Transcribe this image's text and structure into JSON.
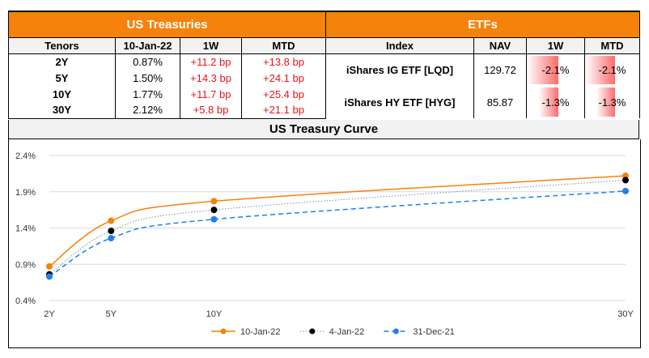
{
  "treasuries": {
    "title": "US Treasuries",
    "headers": [
      "Tenors",
      "10-Jan-22",
      "1W",
      "MTD"
    ],
    "rows": [
      {
        "tenor": "2Y",
        "yield": "0.87%",
        "w1": "+11.2 bp",
        "mtd": "+13.8 bp"
      },
      {
        "tenor": "5Y",
        "yield": "1.50%",
        "w1": "+14.3 bp",
        "mtd": "+24.1 bp"
      },
      {
        "tenor": "10Y",
        "yield": "1.77%",
        "w1": "+11.7 bp",
        "mtd": "+25.4 bp"
      },
      {
        "tenor": "30Y",
        "yield": "2.12%",
        "w1": "+5.8 bp",
        "mtd": "+21.1 bp"
      }
    ]
  },
  "etfs": {
    "title": "ETFs",
    "headers": [
      "Index",
      "NAV",
      "1W",
      "MTD"
    ],
    "rows": [
      {
        "name": "iShares IG ETF [LQD]",
        "nav": "129.72",
        "w1": "-2.1%",
        "mtd": "-2.1%",
        "w1_value": -2.1,
        "mtd_value": -2.1
      },
      {
        "name": "iShares HY ETF [HYG]",
        "nav": "85.87",
        "w1": "-1.3%",
        "mtd": "-1.3%",
        "w1_value": -1.3,
        "mtd_value": -1.3
      }
    ],
    "bar_max": 2.1
  },
  "colors": {
    "accent": "#f5820a",
    "negative_text": "#e8141a",
    "series_10jan": "#f5820a",
    "series_4jan": "#000000",
    "series_31dec": "#1e7ff0"
  },
  "chart_data": {
    "type": "line",
    "title": "US Treasury Curve",
    "xlabel": "",
    "ylabel": "",
    "categories": [
      "2Y",
      "5Y",
      "10Y",
      "30Y"
    ],
    "x": [
      2,
      5,
      10,
      30
    ],
    "ylim": [
      0.4,
      2.4
    ],
    "yticks": [
      0.4,
      0.9,
      1.4,
      1.9,
      2.4
    ],
    "ytick_labels": [
      "0.4%",
      "0.9%",
      "1.4%",
      "1.9%",
      "2.4%"
    ],
    "grid": true,
    "legend": "bottom",
    "series": [
      {
        "name": "10-Jan-22",
        "values": [
          0.87,
          1.5,
          1.77,
          2.12
        ],
        "style": "solid",
        "color": "#f5820a"
      },
      {
        "name": "4-Jan-22",
        "values": [
          0.76,
          1.36,
          1.65,
          2.06
        ],
        "style": "dotted",
        "color": "#000000"
      },
      {
        "name": "31-Dec-21",
        "values": [
          0.73,
          1.26,
          1.52,
          1.91
        ],
        "style": "dashed",
        "color": "#1e7ff0"
      }
    ]
  }
}
